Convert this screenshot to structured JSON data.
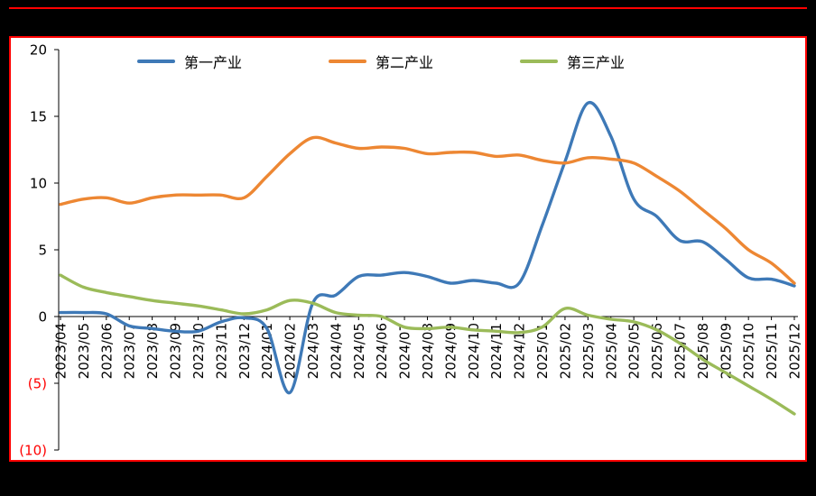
{
  "frame": {
    "page_background": "#000000",
    "panel_background": "#FFFFFF",
    "border_color": "#FF0000",
    "axis_color": "#000000"
  },
  "chart_data": {
    "type": "line",
    "title": "",
    "xlabel": "",
    "ylabel": "",
    "ylim": [
      -10,
      20
    ],
    "grid": false,
    "legend_position": "top",
    "tick_color": "#000000",
    "negative_tick_color": "#FF0000",
    "yticks": [
      20,
      15,
      10,
      5,
      0,
      -5,
      -10
    ],
    "ytick_labels": [
      "20",
      "15",
      "10",
      "5",
      "0",
      "(5)",
      "(10)"
    ],
    "x": [
      "2023/04",
      "2023/05",
      "2023/06",
      "2023/07",
      "2023/08",
      "2023/09",
      "2023/10",
      "2023/11",
      "2023/12",
      "2024/01",
      "2024/02",
      "2024/03",
      "2024/04",
      "2024/05",
      "2024/06",
      "2024/07",
      "2024/08",
      "2024/09",
      "2024/10",
      "2024/11",
      "2024/12",
      "2025/01",
      "2025/02",
      "2025/03",
      "2025/04",
      "2025/05",
      "2025/06",
      "2025/07",
      "2025/08",
      "2025/09",
      "2025/10",
      "2025/11",
      "2025/12"
    ],
    "series": [
      {
        "name": "第一产业",
        "color": "#3E79B7",
        "values": [
          0.3,
          0.3,
          0.2,
          -0.7,
          -0.9,
          -1.1,
          -1.1,
          -0.4,
          -0.1,
          -0.9,
          -5.7,
          1.0,
          1.6,
          3.0,
          3.1,
          3.3,
          3.0,
          2.5,
          2.7,
          2.5,
          2.5,
          6.8,
          11.6,
          16.0,
          13.5,
          8.8,
          7.5,
          5.7,
          5.6,
          4.3,
          2.9,
          2.8,
          2.3
        ]
      },
      {
        "name": "第二产业",
        "color": "#ED8733",
        "values": [
          8.4,
          8.8,
          8.9,
          8.5,
          8.9,
          9.1,
          9.1,
          9.1,
          8.9,
          10.5,
          12.2,
          13.4,
          13.0,
          12.6,
          12.7,
          12.6,
          12.2,
          12.3,
          12.3,
          12.0,
          12.1,
          11.7,
          11.5,
          11.9,
          11.8,
          11.5,
          10.5,
          9.4,
          8.0,
          6.6,
          5.0,
          4.0,
          2.5
        ]
      },
      {
        "name": "第三产业",
        "color": "#9BBB59",
        "values": [
          3.1,
          2.2,
          1.8,
          1.5,
          1.2,
          1.0,
          0.8,
          0.5,
          0.2,
          0.5,
          1.2,
          1.0,
          0.3,
          0.1,
          0.0,
          -0.8,
          -0.9,
          -0.8,
          -1.0,
          -1.1,
          -1.2,
          -0.8,
          0.6,
          0.1,
          -0.2,
          -0.4,
          -1.0,
          -2.0,
          -3.2,
          -4.2,
          -5.2,
          -6.2,
          -7.3
        ]
      }
    ]
  }
}
